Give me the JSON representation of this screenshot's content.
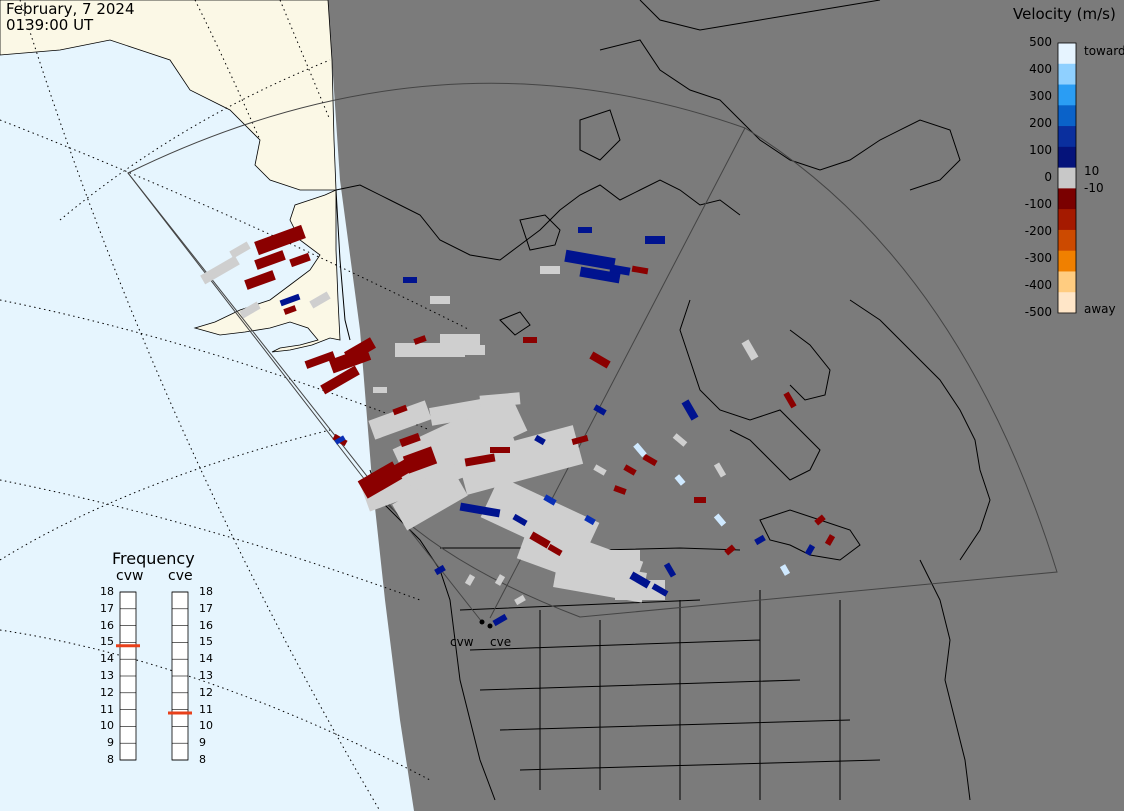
{
  "header": {
    "date": "February, 7 2024",
    "time": "0139:00 UT"
  },
  "legend": {
    "title": "Velocity (m/s)",
    "ticks": [
      "500",
      "400",
      "300",
      "200",
      "100",
      "0",
      "-100",
      "-200",
      "-300",
      "-400",
      "-500"
    ],
    "inner_ticks": [
      "10",
      "-10"
    ],
    "toward_label": "toward",
    "away_label": "away",
    "colors": [
      "#e6f4ff",
      "#8fd0ff",
      "#2a9df4",
      "#0a62c9",
      "#0a2f9e",
      "#05137a",
      "#c8c8c8",
      "#7a0000",
      "#a51a00",
      "#cc4a00",
      "#f08000",
      "#ffcc80",
      "#ffe6c8"
    ]
  },
  "frequency": {
    "title": "Frequency",
    "radars": [
      {
        "name": "cvw",
        "value_mhz": 14.8
      },
      {
        "name": "cve",
        "value_mhz": 10.8
      }
    ],
    "scale": [
      "18",
      "17",
      "16",
      "15",
      "14",
      "13",
      "12",
      "11",
      "10",
      "9",
      "8"
    ],
    "marker_color": "#e8401a"
  },
  "sites": [
    {
      "name": "cvw"
    },
    {
      "name": "cve"
    }
  ],
  "map": {
    "colors": {
      "ocean": "#e6f5fe",
      "night_land": "#7b7b7b",
      "day_land": "#fbf8e6",
      "coastline": "#000000",
      "field_of_view": "#444444",
      "grid": "#000000"
    }
  },
  "scatter_colors": {
    "gray": "#cfcfcf",
    "away_dark_red": "#8b0000",
    "toward_dark_blue": "#00138f",
    "toward_mid_blue": "#0a2fb5",
    "toward_light_blue": "#cfe9ff"
  }
}
